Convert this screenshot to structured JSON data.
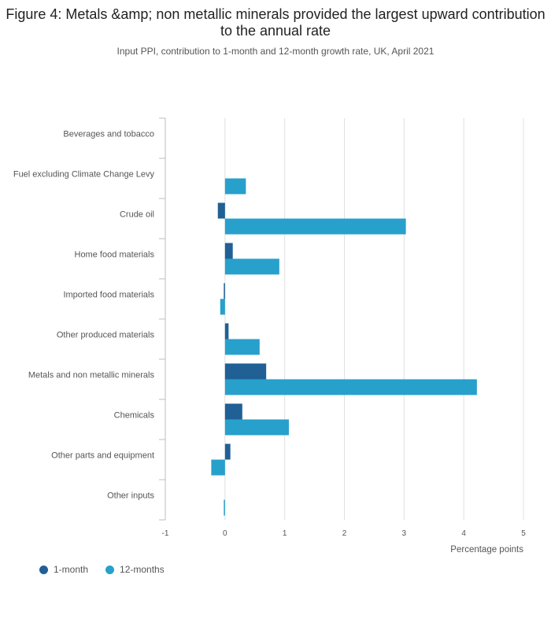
{
  "title": "Figure 4: Metals &amp; non metallic minerals provided the largest upward contribution to the annual rate",
  "subtitle": "Input PPI, contribution to 1-month and 12-month growth rate, UK, April 2021",
  "colors": {
    "one_month": "#206095",
    "twelve_months": "#27a0cc",
    "grid": "#e0e0e0",
    "axis": "#bcbcbc"
  },
  "chart_data": {
    "type": "bar",
    "orientation": "horizontal",
    "categories": [
      "Beverages and tobacco",
      "Fuel excluding Climate Change Levy",
      "Crude oil",
      "Home food materials",
      "Imported food materials",
      "Other produced materials",
      "Metals and non metallic minerals",
      "Chemicals",
      "Other parts and equipment",
      "Other inputs"
    ],
    "series": [
      {
        "name": "1-month",
        "values": [
          0,
          0,
          -0.12,
          0.13,
          -0.02,
          0.06,
          0.69,
          0.29,
          0.09,
          0
        ]
      },
      {
        "name": "12-months",
        "values": [
          0,
          0.35,
          3.03,
          0.91,
          -0.08,
          0.58,
          4.22,
          1.07,
          -0.23,
          -0.02
        ]
      }
    ],
    "xlabel": "Percentage points",
    "xlim": [
      -1,
      5
    ],
    "xticks": [
      "-1",
      "0",
      "1",
      "2",
      "3",
      "4",
      "5"
    ],
    "grid": true,
    "legend": "bottom-left"
  }
}
